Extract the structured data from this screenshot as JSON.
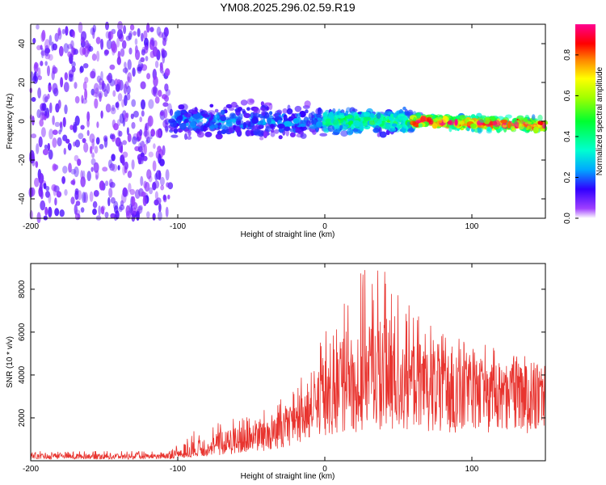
{
  "title": "YM08.2025.296.02.59.R19",
  "chart_data": [
    {
      "type": "heatmap",
      "title": "YM08.2025.296.02.59.R19",
      "xlabel": "Height of straight line (km)",
      "ylabel": "Frequency (Hz)",
      "xlim": [
        -200,
        150
      ],
      "ylim": [
        -50,
        50
      ],
      "xticks": [
        -200,
        -100,
        0,
        100
      ],
      "yticks": [
        -40,
        -20,
        0,
        20,
        40
      ],
      "colorbar": {
        "label": "Normalized spectral amplitude",
        "range": [
          0,
          0.95
        ],
        "ticks": [
          0.0,
          0.2,
          0.4,
          0.6,
          0.8
        ],
        "colormap": "rainbow (white-violet-blue-cyan-green-yellow-red-magenta)"
      },
      "bands": [
        {
          "x_range": [
            -200,
            -105
          ],
          "freq_range": [
            -50,
            50
          ],
          "amplitude": 0.05,
          "description": "broadband noise"
        },
        {
          "x_range": [
            -105,
            0
          ],
          "freq_range": [
            -12,
            12
          ],
          "amplitude": 0.2
        },
        {
          "x_range": [
            0,
            60
          ],
          "freq_range": [
            -8,
            8
          ],
          "amplitude": 0.4
        },
        {
          "x_range": [
            60,
            150
          ],
          "freq_range": [
            -5,
            4
          ],
          "amplitude": 0.8,
          "center_freq_end": -2
        }
      ],
      "ticks_labels": {
        "x": [
          "-200",
          "-100",
          "0",
          "100"
        ],
        "y": [
          "40",
          "20",
          "0",
          "-20",
          "-40"
        ],
        "cb": [
          "0.0",
          "0.2",
          "0.4",
          "0.6",
          "0.8"
        ]
      }
    },
    {
      "type": "line",
      "xlabel": "Height of straight line (km)",
      "ylabel": "SNR (10 * v/v)",
      "xlim": [
        -200,
        150
      ],
      "ylim": [
        0,
        9200
      ],
      "xticks": [
        -200,
        -100,
        0,
        100
      ],
      "yticks": [
        2000,
        4000,
        6000,
        8000
      ],
      "line_color": "#e8342f",
      "envelope": {
        "x": [
          -200,
          -110,
          -100,
          -80,
          -60,
          -40,
          -20,
          0,
          20,
          40,
          60,
          80,
          100,
          120,
          150
        ],
        "mean": [
          200,
          200,
          300,
          600,
          900,
          1300,
          2000,
          3000,
          3800,
          4000,
          3900,
          3800,
          3700,
          3600,
          3600
        ],
        "max": [
          450,
          450,
          1000,
          1700,
          2100,
          2500,
          3300,
          6200,
          8800,
          9100,
          7000,
          6000,
          5800,
          5100,
          5000
        ]
      },
      "ticks_labels": {
        "x": [
          "-200",
          "-100",
          "0",
          "100"
        ],
        "y": [
          "2000",
          "4000",
          "6000",
          "8000"
        ]
      }
    }
  ]
}
